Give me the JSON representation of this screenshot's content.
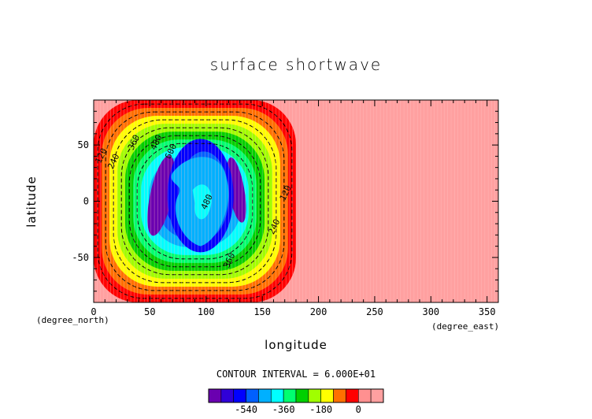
{
  "chart_data": {
    "type": "heatmap",
    "title": "surface shortwave",
    "xlabel": "longitude",
    "ylabel": "latitude",
    "x_unit": "(degree_east)",
    "y_unit": "(degree_north)",
    "xlim": [
      0,
      360
    ],
    "ylim": [
      -90,
      90
    ],
    "x_ticks": [
      "0",
      "50",
      "100",
      "150",
      "200",
      "250",
      "300",
      "350"
    ],
    "y_ticks": [
      "-50",
      "0",
      "50"
    ],
    "contour_interval_text": "CONTOUR INTERVAL = 6.000E+01",
    "contour_interval": 60,
    "contour_labels": [
      {
        "text": "120",
        "lon": 6,
        "lat": 33
      },
      {
        "text": "240",
        "lon": 17,
        "lat": 28
      },
      {
        "text": "360",
        "lon": 35,
        "lat": 45
      },
      {
        "text": "480",
        "lon": 55,
        "lat": 45
      },
      {
        "text": "600",
        "lon": 68,
        "lat": 37
      },
      {
        "text": "480",
        "lon": 100,
        "lat": -8
      },
      {
        "text": "120",
        "lon": 170,
        "lat": 0
      },
      {
        "text": "240",
        "lon": 160,
        "lat": -30
      },
      {
        "text": "360",
        "lon": 120,
        "lat": -60
      }
    ],
    "field_center": {
      "lon": 90,
      "lat": 0
    },
    "field_extent": {
      "lon": [
        0,
        180
      ],
      "lat": [
        -90,
        90
      ]
    },
    "colorbar": {
      "levels": [
        -660,
        -600,
        -540,
        -480,
        -420,
        -360,
        -300,
        -240,
        -180,
        -120,
        -60,
        0,
        60
      ],
      "colors": [
        "#6a00b0",
        "#3000d8",
        "#0000ff",
        "#0060ff",
        "#00b0ff",
        "#00ffff",
        "#00ff70",
        "#00d000",
        "#a0ff00",
        "#ffff00",
        "#ff7000",
        "#ff0000",
        "#ff9090",
        "#ffa0a0"
      ],
      "tick_labels": [
        "-540",
        "-360",
        "-180",
        "0"
      ],
      "tick_values": [
        -540,
        -360,
        -180,
        0
      ]
    }
  }
}
